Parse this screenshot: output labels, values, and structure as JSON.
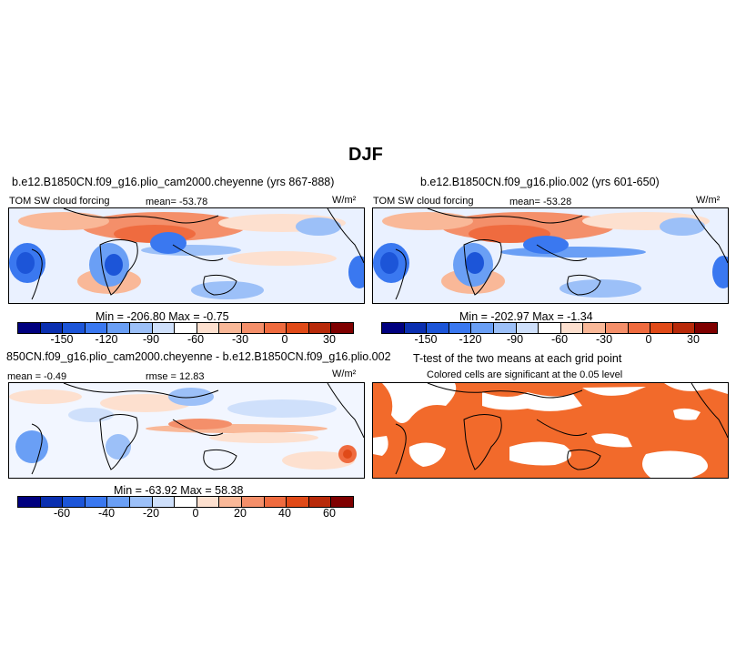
{
  "figure": {
    "title": "DJF"
  },
  "panels": [
    {
      "title": "b.e12.B1850CN.f09_g16.plio_cam2000.cheyenne (yrs 867-888)",
      "variable": "TOM SW cloud forcing",
      "mean_label": "mean= -53.78",
      "units": "W/m²",
      "minmax": "Min = -206.80  Max =  -0.75"
    },
    {
      "title": "b.e12.B1850CN.f09_g16.plio.002 (yrs 601-650)",
      "variable": "TOM SW cloud forcing",
      "mean_label": "mean= -53.28",
      "units": "W/m²",
      "minmax": "Min = -202.97  Max =  -1.34"
    },
    {
      "title": "850CN.f09_g16.plio_cam2000.cheyenne - b.e12.B1850CN.f09_g16.plio.002",
      "mean_label": "mean = -0.49",
      "rmse_label": "rmse =  12.83",
      "units": "W/m²",
      "minmax": "Min = -63.92  Max =  58.38"
    },
    {
      "title": "T-test of the two means at each grid point",
      "subtitle": "Colored cells are significant at the 0.05 level"
    }
  ],
  "colorbar_abs": {
    "ticks": [
      "-150",
      "-120",
      "-90",
      "-60",
      "-30",
      "0",
      "30"
    ]
  },
  "colorbar_diff": {
    "ticks": [
      "-60",
      "-40",
      "-20",
      "0",
      "20",
      "40",
      "60"
    ]
  },
  "palette": [
    "#00007f",
    "#0a2fb0",
    "#1c55d8",
    "#3a78f0",
    "#6a9ff5",
    "#9cc0f8",
    "#cfe0fb",
    "#ffffff",
    "#fde0cf",
    "#f9b898",
    "#f48f6a",
    "#ef6b3f",
    "#e04a18",
    "#b82a0a",
    "#7f0000"
  ],
  "colors": {
    "significant": "#f26a2b",
    "land_outline": "#000000"
  }
}
